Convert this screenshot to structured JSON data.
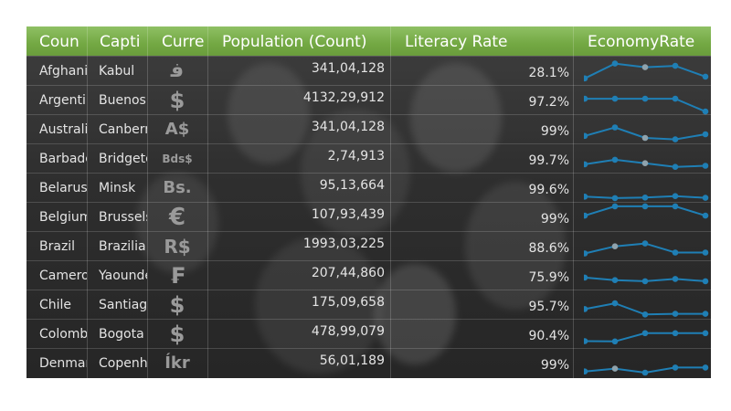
{
  "headers": {
    "country": "Coun",
    "capital": "Capti",
    "currency": "Curre",
    "population": "Population (Count)",
    "literacy": "Literacy Rate",
    "economy": "EconomyRate"
  },
  "colors": {
    "header_bg": "#76aa46",
    "sparkline": "#1f7fb5",
    "highlight_marker": "#8fa3ad",
    "currency_symbol": "#9a9a9a"
  },
  "rows": [
    {
      "country": "Afghani",
      "capital": "Kabul",
      "currency": "ﻓ",
      "population": "341,04,128",
      "literacy": "28.1%",
      "economy": [
        2.0,
        7.2,
        5.9,
        6.4,
        2.6
      ],
      "highlight": 2
    },
    {
      "country": "Argentir",
      "capital": "Buenos",
      "currency": "$",
      "population": "4132,29,912",
      "literacy": "97.2%",
      "economy": [
        5.1,
        5.1,
        5.1,
        5.1,
        0.6
      ],
      "highlight": null
    },
    {
      "country": "Australi",
      "capital": "Canberr",
      "currency": "A$",
      "population": "341,04,128",
      "literacy": "99%",
      "economy": [
        2.3,
        5.3,
        1.6,
        1.1,
        2.9
      ],
      "highlight": 2
    },
    {
      "country": "Barbadc",
      "capital": "Bridgetc",
      "currency": "Bds$",
      "population": "2,74,913",
      "literacy": "99.7%",
      "economy": [
        2.6,
        4.2,
        3.0,
        1.7,
        2.1
      ],
      "highlight": 2
    },
    {
      "country": "Belarus",
      "capital": "Minsk",
      "currency": "Bs.",
      "population": "95,13,664",
      "literacy": "99.6%",
      "economy": [
        1.5,
        1.0,
        1.2,
        1.7,
        1.1
      ],
      "highlight": null
    },
    {
      "country": "Belgium",
      "capital": "Brussels",
      "currency": "€",
      "population": "107,93,439",
      "literacy": "99%",
      "economy": [
        5.1,
        8.4,
        8.4,
        8.4,
        5.1
      ],
      "highlight": null
    },
    {
      "country": "Brazil",
      "capital": "Brazilia",
      "currency": "R$",
      "population": "1993,03,225",
      "literacy": "88.6%",
      "economy": [
        2.1,
        4.6,
        5.6,
        2.4,
        2.4
      ],
      "highlight": 1
    },
    {
      "country": "Camero",
      "capital": "Yaounde",
      "currency": "₣",
      "population": "207,44,860",
      "literacy": "75.9%",
      "economy": [
        3.9,
        3.0,
        2.6,
        3.4,
        2.6
      ],
      "highlight": null
    },
    {
      "country": "Chile",
      "capital": "Santiago",
      "currency": "$",
      "population": "175,09,658",
      "literacy": "95.7%",
      "economy": [
        3.1,
        5.1,
        1.2,
        1.4,
        1.4
      ],
      "highlight": null
    },
    {
      "country": "Colomb",
      "capital": "Bogota",
      "currency": "$",
      "population": "478,99,079",
      "literacy": "90.4%",
      "economy": [
        2.1,
        2.0,
        4.9,
        4.9,
        4.9
      ],
      "highlight": null
    },
    {
      "country": "Denmar",
      "capital": "Copenh",
      "currency": "Íkr",
      "population": "56,01,189",
      "literacy": "99%",
      "economy": [
        1.7,
        2.7,
        1.3,
        3.1,
        3.1
      ],
      "highlight": 1
    }
  ]
}
